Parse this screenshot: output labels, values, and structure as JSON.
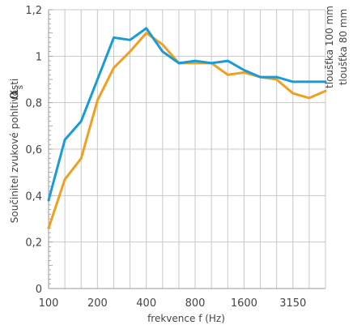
{
  "chart_data": {
    "type": "line",
    "x_categories": [
      "100",
      "125",
      "160",
      "200",
      "250",
      "315",
      "400",
      "500",
      "630",
      "800",
      "1000",
      "1250",
      "1600",
      "2000",
      "2500",
      "3150",
      "4000",
      "5000"
    ],
    "x_tick_labels": [
      {
        "index": 0,
        "label": "100"
      },
      {
        "index": 3,
        "label": "200"
      },
      {
        "index": 6,
        "label": "400"
      },
      {
        "index": 9,
        "label": "800"
      },
      {
        "index": 12,
        "label": "1600"
      },
      {
        "index": 15,
        "label": "3150"
      }
    ],
    "y_tick_labels": [
      "0",
      "0,2",
      "0,4",
      "0,6",
      "0,8",
      "1",
      "1,2"
    ],
    "ylim": [
      0,
      1.2
    ],
    "xlabel": "frekvence f (Hz)",
    "ylabel": "Součinitel zvukové pohltivosti",
    "ylabel_symbol": "α",
    "ylabel_subscript": "s",
    "grid": true,
    "legend_position": "right, vertical",
    "series": [
      {
        "name": "tloušťka 100 mm",
        "color": "#1a9bd7",
        "values": [
          0.38,
          0.64,
          0.72,
          0.9,
          1.08,
          1.07,
          1.12,
          1.02,
          0.97,
          0.98,
          0.97,
          0.98,
          0.94,
          0.91,
          0.91,
          0.89,
          0.89,
          0.89
        ]
      },
      {
        "name": "tloušťka 80 mm",
        "color": "#f0a020",
        "values": [
          0.26,
          0.47,
          0.56,
          0.81,
          0.95,
          1.02,
          1.1,
          1.05,
          0.97,
          0.97,
          0.97,
          0.92,
          0.93,
          0.91,
          0.9,
          0.84,
          0.82,
          0.85
        ]
      }
    ]
  }
}
